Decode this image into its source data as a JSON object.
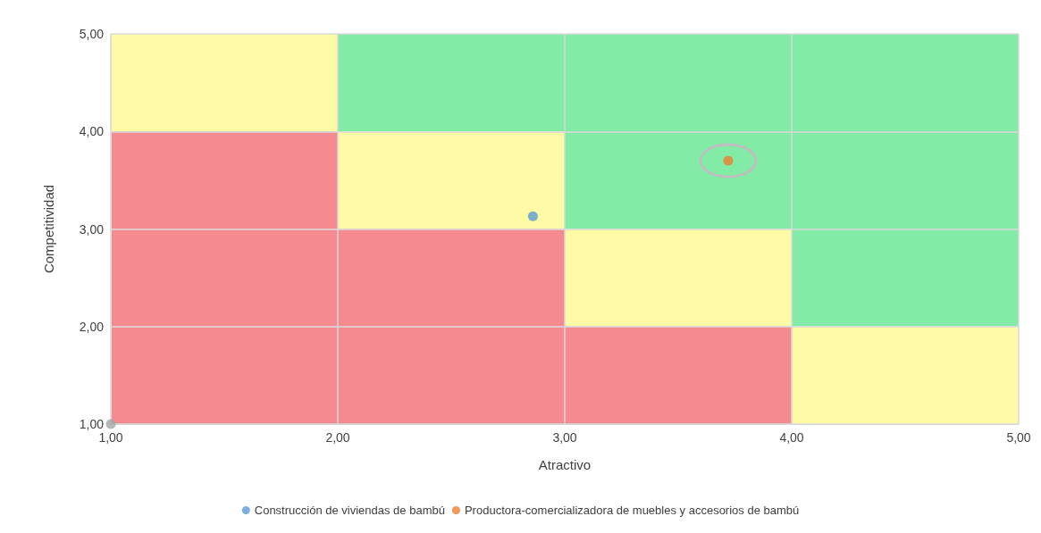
{
  "chart_data": {
    "type": "scatter",
    "xlabel": "Atractivo",
    "ylabel": "Competitividad",
    "xlim": [
      1,
      5
    ],
    "ylim": [
      1,
      5
    ],
    "xticks": [
      {
        "value": 1,
        "label": "1,00"
      },
      {
        "value": 2,
        "label": "2,00"
      },
      {
        "value": 3,
        "label": "3,00"
      },
      {
        "value": 4,
        "label": "4,00"
      },
      {
        "value": 5,
        "label": "5,00"
      }
    ],
    "yticks": [
      {
        "value": 1,
        "label": "1,00"
      },
      {
        "value": 2,
        "label": "2,00"
      },
      {
        "value": 3,
        "label": "3,00"
      },
      {
        "value": 4,
        "label": "4,00"
      },
      {
        "value": 5,
        "label": "5,00"
      }
    ],
    "grid": true,
    "legend": "bottom",
    "marker": "circle",
    "series": [
      {
        "type": "bar",
        "x": [
          1.5,
          2.5,
          3.5,
          4.5
        ],
        "base": [
          4,
          4,
          4,
          4
        ],
        "values": [
          1,
          1,
          1,
          1
        ],
        "colors": [
          "#fffaa6",
          "#82eca6",
          "#82eca6",
          "#82eca6"
        ]
      },
      {
        "type": "bar",
        "x": [
          1.5,
          2.5,
          3.5,
          4.5
        ],
        "base": [
          3,
          3,
          3,
          3
        ],
        "values": [
          1,
          1,
          1,
          1
        ],
        "colors": [
          "#f58b91",
          "#fffaa6",
          "#82eca6",
          "#82eca6"
        ]
      },
      {
        "type": "bar",
        "x": [
          1.5,
          2.5,
          3.5,
          4.5
        ],
        "base": [
          2,
          2,
          2,
          2
        ],
        "values": [
          1,
          1,
          1,
          1
        ],
        "colors": [
          "#f58b91",
          "#f58b91",
          "#fffaa6",
          "#82eca6"
        ]
      },
      {
        "type": "bar",
        "x": [
          1.5,
          2.5,
          3.5,
          4.5
        ],
        "base": [
          1,
          1,
          1,
          1
        ],
        "values": [
          1,
          1,
          1,
          1
        ],
        "colors": [
          "#f58b91",
          "#f58b91",
          "#f58b91",
          "#fffaa6"
        ]
      },
      {
        "name": "Construcción de viviendas de bambú",
        "color": "#5b9bd5",
        "x": [
          2.86
        ],
        "values": [
          3.13
        ]
      },
      {
        "name": "Productora-comercializadora de muebles y accesorios de bambú",
        "color": "#ed7d31",
        "x": [
          3.72
        ],
        "values": [
          3.7
        ]
      },
      {
        "color": "#a5a5a5",
        "x": [
          1
        ],
        "values": [
          1
        ]
      }
    ]
  }
}
